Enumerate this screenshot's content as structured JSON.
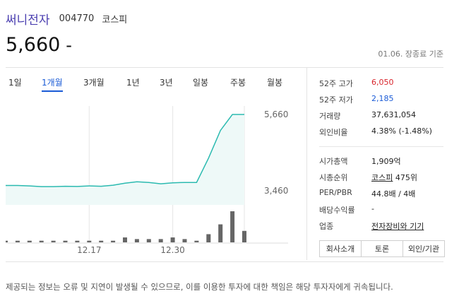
{
  "header": {
    "company": "써니전자",
    "code": "004770",
    "market": "코스피"
  },
  "price": {
    "current": "5,660",
    "change_sign": "-"
  },
  "asof": "01.06. 장종료 기준",
  "tabs": [
    {
      "label": "1일",
      "active": false
    },
    {
      "label": "1개월",
      "active": true
    },
    {
      "label": "3개월",
      "active": false
    },
    {
      "label": "1년",
      "active": false
    },
    {
      "label": "3년",
      "active": false
    },
    {
      "label": "일봉",
      "active": false
    },
    {
      "label": "주봉",
      "active": false
    },
    {
      "label": "월봉",
      "active": false
    }
  ],
  "stats": {
    "high52_label": "52주 고가",
    "high52": "6,050",
    "low52_label": "52주 저가",
    "low52": "2,185",
    "volume_label": "거래량",
    "volume": "37,631,054",
    "foreign_label": "외인비율",
    "foreign": "4.38% (-1.48%)",
    "mktcap_label": "시가총액",
    "mktcap": "1,909억",
    "rank_label": "시총순위",
    "rank_link": "코스피",
    "rank_value": "475위",
    "per_label": "PER/PBR",
    "per": "44.8배 / 4배",
    "div_label": "배당수익률",
    "div": "-",
    "sector_label": "업종",
    "sector": "전자장비와 기기"
  },
  "buttons": [
    "회사소개",
    "토론",
    "외인/기관"
  ],
  "disclaimer": "제공되는 정보는 오류 및 지연이 발생될 수 있으므로, 이를 이용한 투자에 대한 책임은 해당 투자자에게 귀속됩니다.",
  "chart_data": {
    "type": "area",
    "price_series": [
      3612,
      3612,
      3600,
      3580,
      3580,
      3590,
      3585,
      3600,
      3590,
      3620,
      3680,
      3720,
      3700,
      3660,
      3690,
      3700,
      3700,
      4400,
      5200,
      5660,
      5660
    ],
    "volume_series": [
      1,
      1,
      1,
      1,
      1,
      1,
      1,
      1,
      1,
      1,
      3,
      2,
      2,
      2,
      3,
      2,
      1,
      5,
      11,
      19,
      7
    ],
    "y_ticks": [
      "5,660",
      "3,460"
    ],
    "x_ticks": [
      "12.17",
      "12.30"
    ],
    "ylim": [
      3460,
      5660
    ],
    "colors": {
      "line": "#2bbab0",
      "fill": "#eef9f8",
      "bar": "#666666"
    }
  }
}
